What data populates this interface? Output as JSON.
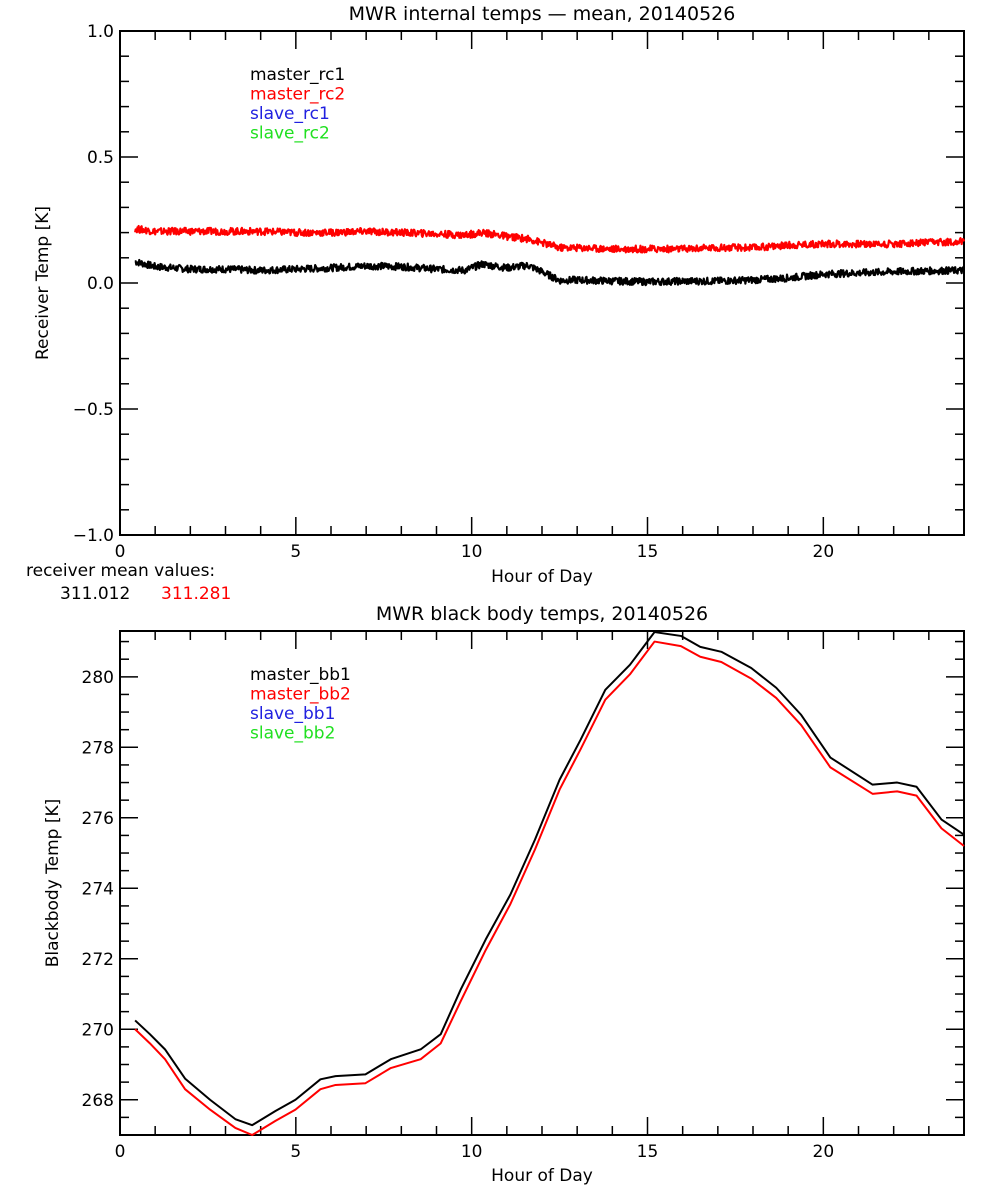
{
  "chart_data": [
    {
      "type": "line",
      "title": "MWR internal temps — mean, 20140526",
      "xlabel": "Hour of Day",
      "ylabel": "Receiver Temp [K]",
      "xlim": [
        0,
        24
      ],
      "ylim": [
        -1.0,
        1.0
      ],
      "xticks": [
        0,
        5,
        10,
        15,
        20
      ],
      "xtick_labels": [
        "0",
        "5",
        "10",
        "15",
        "20"
      ],
      "yticks": [
        -1.0,
        -0.5,
        0.0,
        0.5,
        1.0
      ],
      "ytick_labels": [
        "−1.0",
        "−0.5",
        "0.0",
        "0.5",
        "1.0"
      ],
      "grid": false,
      "legend_placement": "top-left",
      "legend": [
        {
          "name": "master_rc1",
          "color": "#000000"
        },
        {
          "name": "master_rc2",
          "color": "#ff0000"
        },
        {
          "name": "slave_rc1",
          "color": "#2020e0"
        },
        {
          "name": "slave_rc2",
          "color": "#20e020"
        }
      ],
      "x": [
        0.43,
        1.0,
        2.0,
        3.0,
        4.0,
        5.0,
        6.0,
        7.0,
        8.0,
        9.0,
        9.8,
        10.3,
        11.0,
        11.6,
        12.0,
        12.5,
        13.0,
        14.0,
        15.0,
        16.0,
        17.0,
        18.0,
        19.0,
        20.0,
        21.0,
        22.0,
        23.0,
        24.0
      ],
      "series": [
        {
          "name": "master_rc1",
          "color": "#000000",
          "values": [
            0.085,
            0.065,
            0.055,
            0.055,
            0.05,
            0.055,
            0.06,
            0.068,
            0.065,
            0.055,
            0.05,
            0.075,
            0.06,
            0.07,
            0.045,
            0.01,
            0.012,
            0.008,
            0.005,
            0.007,
            0.008,
            0.012,
            0.02,
            0.035,
            0.04,
            0.045,
            0.048,
            0.05
          ]
        },
        {
          "name": "master_rc2",
          "color": "#ff0000",
          "values": [
            0.215,
            0.205,
            0.205,
            0.205,
            0.205,
            0.2,
            0.2,
            0.205,
            0.2,
            0.195,
            0.19,
            0.2,
            0.185,
            0.175,
            0.16,
            0.14,
            0.14,
            0.135,
            0.135,
            0.135,
            0.14,
            0.14,
            0.15,
            0.155,
            0.155,
            0.155,
            0.16,
            0.165
          ]
        }
      ],
      "annotation": {
        "label": "receiver mean values:",
        "values": [
          {
            "text": "311.012",
            "color": "#000000"
          },
          {
            "text": "311.281",
            "color": "#ff0000"
          }
        ]
      }
    },
    {
      "type": "line",
      "title": "MWR black body temps, 20140526",
      "xlabel": "Hour of Day",
      "ylabel": "Blackbody Temp [K]",
      "xlim": [
        0,
        24
      ],
      "ylim": [
        267.0,
        281.3
      ],
      "xticks": [
        0,
        5,
        10,
        15,
        20
      ],
      "xtick_labels": [
        "0",
        "5",
        "10",
        "15",
        "20"
      ],
      "yticks": [
        268,
        270,
        272,
        274,
        276,
        278,
        280
      ],
      "ytick_labels": [
        "268",
        "270",
        "272",
        "274",
        "276",
        "278",
        "280"
      ],
      "grid": false,
      "legend_placement": "top-left",
      "legend": [
        {
          "name": "master_bb1",
          "color": "#000000"
        },
        {
          "name": "master_bb2",
          "color": "#ff0000"
        },
        {
          "name": "slave_bb1",
          "color": "#2020e0"
        },
        {
          "name": "slave_bb2",
          "color": "#20e020"
        }
      ],
      "x": [
        0.43,
        0.85,
        1.28,
        1.85,
        2.56,
        3.28,
        3.76,
        4.42,
        4.99,
        5.7,
        6.13,
        6.98,
        7.7,
        8.55,
        9.12,
        9.69,
        10.4,
        11.1,
        11.8,
        12.5,
        13.1,
        13.8,
        14.5,
        15.2,
        15.95,
        16.5,
        17.1,
        17.95,
        18.66,
        19.37,
        20.2,
        21.4,
        22.1,
        22.65,
        23.36,
        24.0
      ],
      "series": [
        {
          "name": "master_bb1",
          "color": "#000000",
          "values": [
            270.25,
            269.86,
            269.43,
            268.6,
            268.0,
            267.45,
            267.28,
            267.68,
            268.0,
            268.58,
            268.67,
            268.72,
            269.15,
            269.43,
            269.86,
            271.13,
            272.55,
            273.82,
            275.38,
            277.08,
            278.22,
            279.63,
            280.34,
            281.27,
            281.16,
            280.85,
            280.71,
            280.25,
            279.69,
            278.92,
            277.71,
            276.94,
            277.0,
            276.88,
            275.95,
            275.52
          ]
        },
        {
          "name": "master_bb2",
          "color": "#ff0000",
          "values": [
            270.0,
            269.6,
            269.15,
            268.3,
            267.72,
            267.2,
            267.0,
            267.4,
            267.72,
            268.3,
            268.42,
            268.47,
            268.9,
            269.15,
            269.6,
            270.8,
            272.25,
            273.55,
            275.1,
            276.8,
            277.95,
            279.35,
            280.07,
            281.0,
            280.87,
            280.57,
            280.42,
            279.95,
            279.4,
            278.63,
            277.43,
            276.68,
            276.75,
            276.63,
            275.7,
            275.2
          ]
        }
      ]
    }
  ]
}
